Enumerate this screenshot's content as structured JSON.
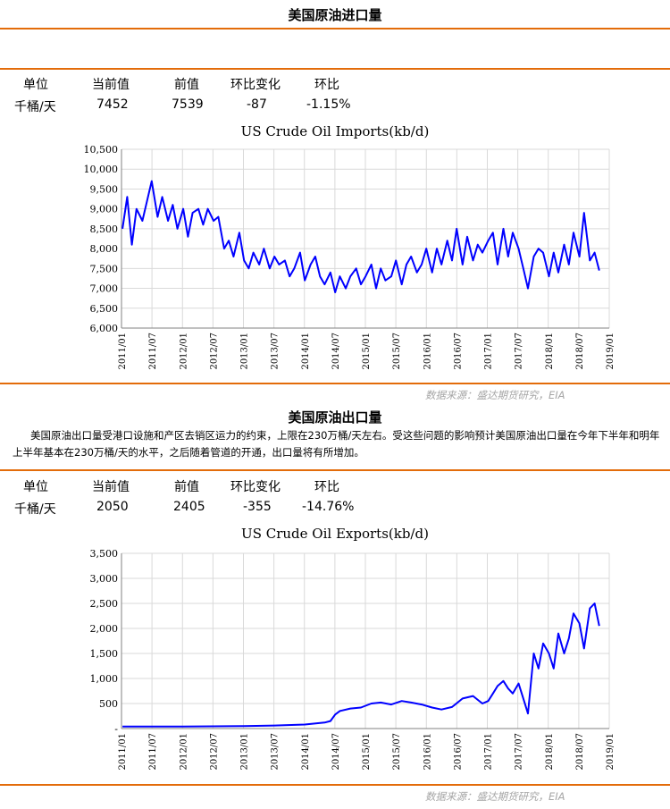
{
  "imports": {
    "title": "美国原油进口量",
    "headers": [
      "单位",
      "当前值",
      "前值",
      "环比变化",
      "环比"
    ],
    "values": [
      "千桶/天",
      "7452",
      "7539",
      "-87",
      "-1.15%"
    ],
    "source": "数据来源：盛达期货研究，EIA"
  },
  "exports": {
    "title": "美国原油出口量",
    "description": "美国原油出口量受港口设施和产区去销区运力的约束，上限在230万桶/天左右。受这些问题的影响预计美国原油出口量在今年下半年和明年上半年基本在230万桶/天的水平，之后随着管道的开通，出口量将有所增加。",
    "headers": [
      "单位",
      "当前值",
      "前值",
      "环比变化",
      "环比"
    ],
    "values": [
      "千桶/天",
      "2050",
      "2405",
      "-355",
      "-14.76%"
    ],
    "source": "数据来源：盛达期货研究，EIA"
  },
  "colors": {
    "accent": "#e36c0a",
    "series": "#0000ff",
    "grid": "#d9d9d9",
    "source": "#a6a6a6"
  },
  "chart_data": [
    {
      "type": "line",
      "title": "US Crude Oil Imports(kb/d)",
      "x_ticks": [
        "2011/01",
        "2011/07",
        "2012/01",
        "2012/07",
        "2013/01",
        "2013/07",
        "2014/01",
        "2014/07",
        "2015/01",
        "2015/07",
        "2016/01",
        "2016/07",
        "2017/01",
        "2017/07",
        "2018/01",
        "2018/07",
        "2019/01"
      ],
      "y_ticks": [
        "6,000",
        "6,500",
        "7,000",
        "7,500",
        "8,000",
        "8,500",
        "9,000",
        "9,500",
        "10,000",
        "10,500"
      ],
      "ylim": [
        6000,
        10500
      ],
      "xlim": [
        "2011-01-01",
        "2019-01-01"
      ],
      "grid": true,
      "legend": "none",
      "series": [
        {
          "frequency": "weekly",
          "x": [
            "2011-01-07",
            "2011-02-04",
            "2011-03-04",
            "2011-04-01",
            "2011-05-06",
            "2011-06-03",
            "2011-07-01",
            "2011-08-05",
            "2011-09-02",
            "2011-10-07",
            "2011-11-04",
            "2011-12-02",
            "2012-01-06",
            "2012-02-03",
            "2012-03-02",
            "2012-04-06",
            "2012-05-04",
            "2012-06-01",
            "2012-07-06",
            "2012-08-03",
            "2012-09-07",
            "2012-10-05",
            "2012-11-02",
            "2012-12-07",
            "2013-01-04",
            "2013-02-01",
            "2013-03-01",
            "2013-04-05",
            "2013-05-03",
            "2013-06-07",
            "2013-07-05",
            "2013-08-02",
            "2013-09-06",
            "2013-10-04",
            "2013-11-01",
            "2013-12-06",
            "2014-01-03",
            "2014-02-07",
            "2014-03-07",
            "2014-04-04",
            "2014-05-02",
            "2014-06-06",
            "2014-07-04",
            "2014-08-01",
            "2014-09-05",
            "2014-10-03",
            "2014-11-07",
            "2014-12-05",
            "2015-01-02",
            "2015-02-06",
            "2015-03-06",
            "2015-04-03",
            "2015-05-01",
            "2015-06-05",
            "2015-07-03",
            "2015-08-07",
            "2015-09-04",
            "2015-10-02",
            "2015-11-06",
            "2015-12-04",
            "2016-01-01",
            "2016-02-05",
            "2016-03-04",
            "2016-04-01",
            "2016-05-06",
            "2016-06-03",
            "2016-07-01",
            "2016-08-05",
            "2016-09-02",
            "2016-10-07",
            "2016-11-04",
            "2016-12-02",
            "2017-01-06",
            "2017-02-03",
            "2017-03-03",
            "2017-04-07",
            "2017-05-05",
            "2017-06-02",
            "2017-07-07",
            "2017-08-04",
            "2017-09-01",
            "2017-10-06",
            "2017-11-03",
            "2017-12-01",
            "2018-01-05",
            "2018-02-02",
            "2018-03-02",
            "2018-04-06",
            "2018-05-04",
            "2018-06-01",
            "2018-07-06",
            "2018-08-03",
            "2018-09-07",
            "2018-10-05",
            "2018-11-02"
          ],
          "values": [
            8500,
            9300,
            8100,
            9000,
            8700,
            9200,
            9700,
            8800,
            9300,
            8700,
            9100,
            8500,
            9000,
            8300,
            8900,
            9000,
            8600,
            9000,
            8700,
            8800,
            8000,
            8200,
            7800,
            8400,
            7700,
            7500,
            7900,
            7600,
            8000,
            7500,
            7800,
            7600,
            7700,
            7300,
            7500,
            7900,
            7200,
            7600,
            7800,
            7300,
            7100,
            7400,
            6900,
            7300,
            7000,
            7300,
            7500,
            7100,
            7300,
            7600,
            7000,
            7500,
            7200,
            7300,
            7700,
            7100,
            7600,
            7800,
            7400,
            7600,
            8000,
            7400,
            8000,
            7600,
            8200,
            7700,
            8500,
            7600,
            8300,
            7700,
            8100,
            7900,
            8200,
            8400,
            7600,
            8500,
            7800,
            8400,
            8000,
            7500,
            7000,
            7800,
            8000,
            7900,
            7300,
            7900,
            7400,
            8100,
            7600,
            8400,
            7800,
            8900,
            7700,
            7900,
            7450
          ]
        }
      ]
    },
    {
      "type": "line",
      "title": "US Crude Oil Exports(kb/d)",
      "x_ticks": [
        "2011/01",
        "2011/07",
        "2012/01",
        "2012/07",
        "2013/01",
        "2013/07",
        "2014/01",
        "2014/07",
        "2015/01",
        "2015/07",
        "2016/01",
        "2016/07",
        "2017/01",
        "2017/07",
        "2018/01",
        "2018/07",
        "2019/01"
      ],
      "y_ticks": [
        "-",
        "500",
        "1,000",
        "1,500",
        "2,000",
        "2,500",
        "3,000",
        "3,500"
      ],
      "ylim": [
        0,
        3500
      ],
      "xlim": [
        "2011-01-01",
        "2019-01-01"
      ],
      "grid": true,
      "legend": "none",
      "series": [
        {
          "frequency": "weekly",
          "x": [
            "2011-01-07",
            "2011-07-01",
            "2012-01-06",
            "2012-07-06",
            "2013-01-04",
            "2013-07-05",
            "2014-01-03",
            "2014-05-02",
            "2014-06-06",
            "2014-07-04",
            "2014-08-01",
            "2014-10-03",
            "2014-12-05",
            "2015-02-06",
            "2015-04-03",
            "2015-06-05",
            "2015-08-07",
            "2015-10-02",
            "2015-12-04",
            "2016-02-05",
            "2016-04-01",
            "2016-06-03",
            "2016-08-05",
            "2016-10-07",
            "2016-12-02",
            "2017-01-06",
            "2017-02-03",
            "2017-03-03",
            "2017-04-07",
            "2017-05-05",
            "2017-06-02",
            "2017-07-07",
            "2017-08-04",
            "2017-09-01",
            "2017-10-06",
            "2017-11-03",
            "2017-12-01",
            "2018-01-05",
            "2018-02-02",
            "2018-03-02",
            "2018-04-06",
            "2018-05-04",
            "2018-06-01",
            "2018-07-06",
            "2018-08-03",
            "2018-09-07",
            "2018-10-05",
            "2018-11-02"
          ],
          "values": [
            40,
            40,
            40,
            45,
            50,
            60,
            80,
            120,
            150,
            280,
            350,
            400,
            420,
            500,
            520,
            480,
            550,
            520,
            480,
            420,
            380,
            430,
            600,
            650,
            500,
            550,
            700,
            850,
            950,
            800,
            700,
            900,
            600,
            300,
            1500,
            1200,
            1700,
            1500,
            1200,
            1900,
            1500,
            1800,
            2300,
            2100,
            1600,
            2400,
            2500,
            2050
          ]
        }
      ]
    }
  ]
}
